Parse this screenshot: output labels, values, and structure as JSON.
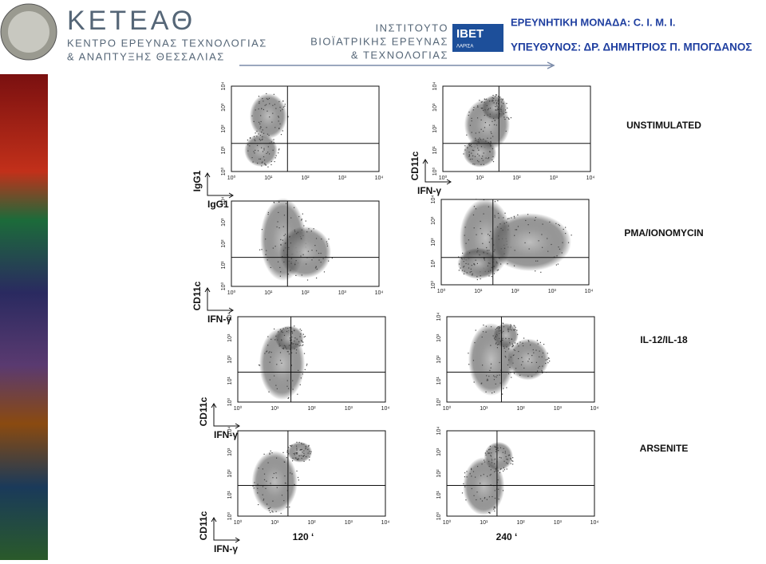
{
  "header": {
    "org_title": "ΚΕΤΕΑΘ",
    "org_lines": [
      "ΚΕΝΤΡΟ ΕΡΕΥΝΑΣ ΤΕΧΝΟΛΟΓΙΑΣ",
      "& ΑΝΑΠΤΥΞΗΣ ΘΕΣΣΑΛΙΑΣ"
    ],
    "institute_lines": [
      "ΙΝΣΤΙΤΟΥΤΟ",
      "ΒΙΟΪΑΤΡΙΚΗΣ ΕΡΕΥΝΑΣ",
      "& ΤΕΧΝΟΛΟΓΙΑΣ"
    ],
    "logo": "IBET",
    "logo_city": "ΛΑΡΙΣΑ",
    "unit": "ΕΡΕΥΝΗΤΙΚΗ ΜΟΝΑΔΑ: C. I. M. I.",
    "head": "ΥΠΕΥΘΥΝΟΣ: ΔΡ. ΔΗΜΗΤΡΙΟΣ Π. ΜΠΟΓΔΑΝΟΣ"
  },
  "axis_ticks": [
    "10⁰",
    "10¹",
    "10²",
    "10³",
    "10⁴"
  ],
  "rows": [
    {
      "condition": "UNSTIMULATED",
      "y_label": "IgG1",
      "x_label": "IgG1",
      "right_y_label": "CD11c",
      "right_x_label": "IFN-γ"
    },
    {
      "condition": "PMA/IONOMYCIN",
      "y_label": "CD11c",
      "x_label": "IFN-γ"
    },
    {
      "condition": "IL-12/IL-18",
      "y_label": "CD11c",
      "x_label": "IFN-γ"
    },
    {
      "condition": "ARSENITE",
      "y_label": "CD11c",
      "x_label": "IFN-γ"
    }
  ],
  "time_labels": [
    "120 ‘",
    "240 ‘"
  ]
}
